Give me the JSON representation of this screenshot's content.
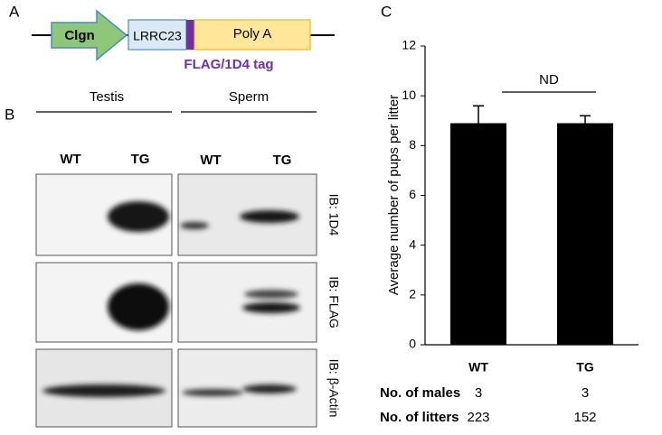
{
  "panel_labels": [
    "A",
    "B",
    "C"
  ],
  "construct": {
    "promoter": "Clgn",
    "gene": "LRRC23",
    "polya": "Poly A",
    "tag": "FLAG/1D4 tag"
  },
  "blot": {
    "tissues": [
      "Testis",
      "Sperm"
    ],
    "lanes": [
      "WT",
      "TG",
      "WT",
      "TG"
    ],
    "antibodies": [
      "IB: 1D4",
      "IB: FLAG",
      "IB: β-Actin"
    ]
  },
  "chart_data": {
    "type": "bar",
    "ylabel": "Average number of pups per litter",
    "categories": [
      "WT",
      "TG"
    ],
    "values": [
      8.9,
      8.9
    ],
    "errors": [
      0.7,
      0.3
    ],
    "color": "#000000",
    "ylim": [
      0,
      12
    ],
    "yticks": [
      0,
      2,
      4,
      6,
      8,
      10,
      12
    ],
    "annotation": "ND"
  },
  "table": {
    "rows": [
      {
        "label": "No. of males",
        "values": [
          3,
          3
        ]
      },
      {
        "label": "No. of litters",
        "values": [
          223,
          152
        ]
      }
    ]
  }
}
